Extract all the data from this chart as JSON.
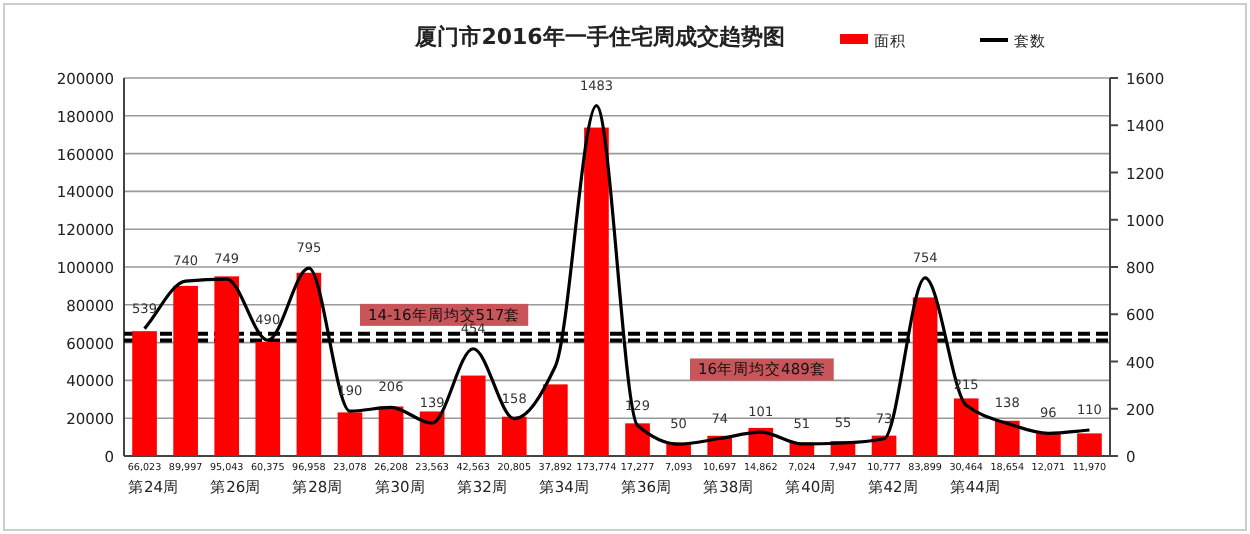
{
  "chart_data": {
    "type": "bar",
    "title": "厦门市2016年一手住宅周成交趋势图",
    "categories": [
      "第24周",
      null,
      "第26周",
      null,
      "第28周",
      null,
      "第30周",
      null,
      "第32周",
      null,
      "第34周",
      null,
      "第36周",
      null,
      "第38周",
      null,
      "第40周",
      null,
      "第42周",
      null,
      "第44周",
      null,
      null,
      null
    ],
    "series": [
      {
        "name": "面积",
        "color": "#ff0000",
        "values": [
          66023,
          89997,
          95043,
          60375,
          96958,
          23078,
          26208,
          23563,
          42563,
          20805,
          37892,
          173774,
          17277,
          7093,
          10697,
          14862,
          7024,
          7947,
          10777,
          83899,
          30464,
          18654,
          12071,
          11970
        ],
        "value_labels": [
          "66,023",
          "89,997",
          "95,043",
          "60,375",
          "96,958",
          "23,078",
          "26,208",
          "23,563",
          "42,563",
          "20,805",
          "37,892",
          "173,774",
          "17,277",
          "7,093",
          "10,697",
          "14,862",
          "7,024",
          "7,947",
          "10,777",
          "83,899",
          "30,464",
          "18,654",
          "12,071",
          "11,970"
        ]
      },
      {
        "name": "套数",
        "type": "line",
        "axis": "y2",
        "color": "#000000",
        "values": [
          539,
          740,
          749,
          490,
          795,
          190,
          206,
          139,
          454,
          158,
          380,
          1483,
          129,
          50,
          74,
          101,
          51,
          55,
          73,
          754,
          215,
          138,
          96,
          110
        ],
        "value_labels": [
          "539",
          "740",
          "749",
          "490",
          "795",
          "190",
          "206",
          "139",
          "454",
          "158",
          null,
          "1483",
          "129",
          "50",
          "74",
          "101",
          "51",
          "55",
          "73",
          "754",
          "215",
          "138",
          "96",
          "110"
        ]
      }
    ],
    "ylim": [
      0,
      200000
    ],
    "yticks": [
      0,
      20000,
      40000,
      60000,
      80000,
      100000,
      120000,
      140000,
      160000,
      180000,
      200000
    ],
    "y2lim": [
      0,
      1600
    ],
    "y2ticks": [
      0,
      200,
      400,
      600,
      800,
      1000,
      1200,
      1400,
      1600
    ],
    "ref_lines": [
      {
        "axis": "y2",
        "value": 517,
        "label": "14-16年周均交517套",
        "color": "#000000",
        "line_style": "dashed"
      },
      {
        "axis": "y2",
        "value": 489,
        "label": "16年周均交489套",
        "color": "#000000",
        "line_style": "dashed"
      }
    ],
    "grid": "y",
    "legend": "top right",
    "marker": "none"
  }
}
